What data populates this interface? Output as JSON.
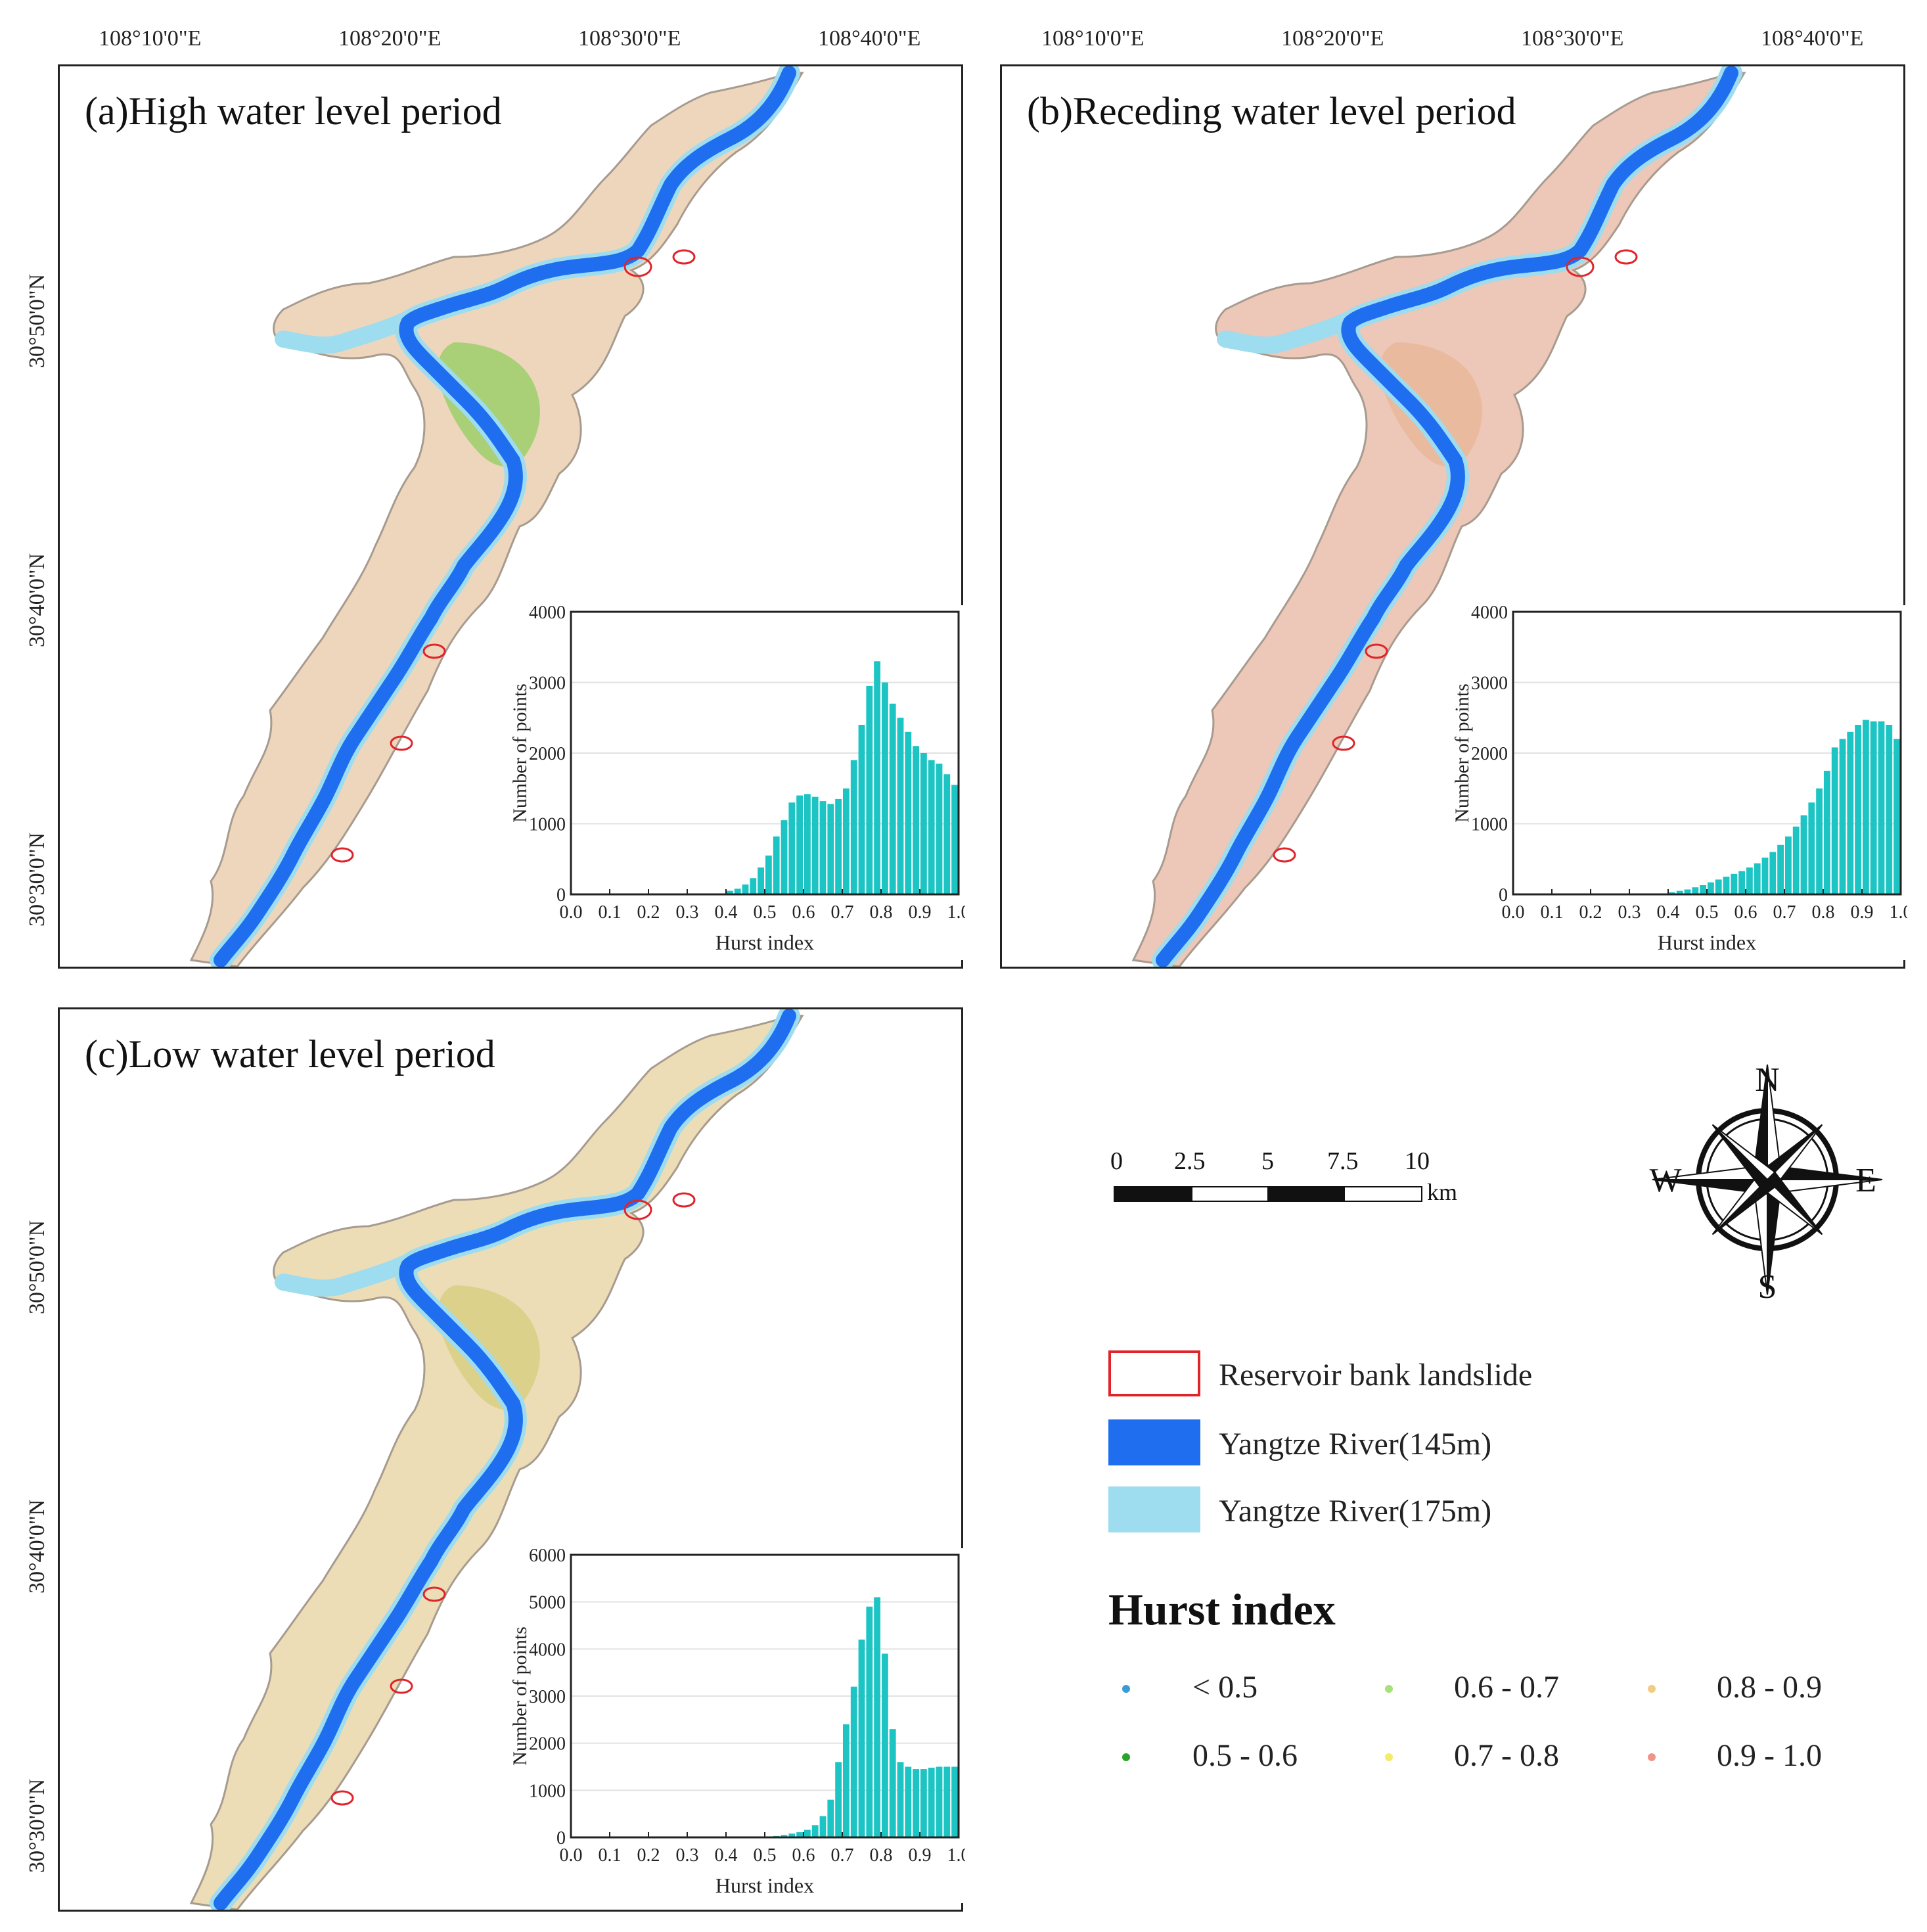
{
  "coordinates": {
    "longitude_labels": [
      "108°10'0\"E",
      "108°20'0\"E",
      "108°30'0\"E",
      "108°40'0\"E"
    ],
    "latitude_labels": [
      "30°50'0\"N",
      "30°40'0\"N",
      "30°30'0\"N"
    ]
  },
  "panels": [
    {
      "title": "(a)High water level period"
    },
    {
      "title": "(b)Receding water level period"
    },
    {
      "title": "(c)Low water level period"
    }
  ],
  "scale_bar": {
    "ticks": [
      "0",
      "2.5",
      "5",
      "7.5",
      "10"
    ],
    "unit": "km"
  },
  "compass": {
    "n": "N",
    "s": "S",
    "e": "E",
    "w": "W"
  },
  "legend": {
    "items": [
      {
        "label": "Reservoir bank landslide",
        "icon": "red-outline-rectangle",
        "color": "#e0242a"
      },
      {
        "label": "Yangtze River(145m)",
        "icon": "blue-filled-rectangle",
        "color": "#1f6ef0"
      },
      {
        "label": "Yangtze River(175m)",
        "icon": "light-blue-filled-rectangle",
        "color": "#9edcf0"
      }
    ]
  },
  "hurst_legend": {
    "title": "Hurst index",
    "classes": [
      {
        "label": "< 0.5",
        "color": "#3a9bd6"
      },
      {
        "label": "0.5 - 0.6",
        "color": "#2aa52a"
      },
      {
        "label": "0.6 - 0.7",
        "color": "#a8e07a"
      },
      {
        "label": "0.7 - 0.8",
        "color": "#f2ec6a"
      },
      {
        "label": "0.8 - 0.9",
        "color": "#f0cd82"
      },
      {
        "label": "0.9 - 1.0",
        "color": "#f0948a"
      }
    ]
  },
  "colors": {
    "river_145": "#1f6ef0",
    "river_175": "#9edcf0",
    "bar": "#1cc4c4",
    "landslide": "#e0242a"
  },
  "chart_data": [
    {
      "type": "bar",
      "panel": "(a)",
      "xlabel": "Hurst index",
      "ylabel": "Number of points",
      "xlim": [
        0.0,
        1.0
      ],
      "ylim": [
        0,
        4000
      ],
      "xticks": [
        "0.0",
        "0.1",
        "0.2",
        "0.3",
        "0.4",
        "0.5",
        "0.6",
        "0.7",
        "0.8",
        "0.9",
        "1.0"
      ],
      "yticks": [
        "0",
        "1000",
        "2000",
        "3000",
        "4000"
      ],
      "bin_width": 0.02,
      "bins": [
        0.0,
        0.02,
        0.04,
        0.06,
        0.08,
        0.1,
        0.12,
        0.14,
        0.16,
        0.18,
        0.2,
        0.22,
        0.24,
        0.26,
        0.28,
        0.3,
        0.32,
        0.34,
        0.36,
        0.38,
        0.4,
        0.42,
        0.44,
        0.46,
        0.48,
        0.5,
        0.52,
        0.54,
        0.56,
        0.58,
        0.6,
        0.62,
        0.64,
        0.66,
        0.68,
        0.7,
        0.72,
        0.74,
        0.76,
        0.78,
        0.8,
        0.82,
        0.84,
        0.86,
        0.88,
        0.9,
        0.92,
        0.94,
        0.96,
        0.98
      ],
      "values": [
        0,
        0,
        0,
        0,
        0,
        0,
        0,
        0,
        0,
        0,
        0,
        0,
        0,
        0,
        0,
        0,
        0,
        0,
        0,
        0,
        50,
        80,
        140,
        230,
        380,
        550,
        820,
        1050,
        1300,
        1400,
        1420,
        1380,
        1320,
        1280,
        1350,
        1500,
        1900,
        2400,
        2950,
        3300,
        3000,
        2700,
        2500,
        2300,
        2100,
        2000,
        1900,
        1850,
        1700,
        1550
      ]
    },
    {
      "type": "bar",
      "panel": "(b)",
      "xlabel": "Hurst index",
      "ylabel": "Number of points",
      "xlim": [
        0.0,
        1.0
      ],
      "ylim": [
        0,
        4000
      ],
      "xticks": [
        "0.0",
        "0.1",
        "0.2",
        "0.3",
        "0.4",
        "0.5",
        "0.6",
        "0.7",
        "0.8",
        "0.9",
        "1.0"
      ],
      "yticks": [
        "0",
        "1000",
        "2000",
        "3000",
        "4000"
      ],
      "bin_width": 0.02,
      "bins": [
        0.0,
        0.02,
        0.04,
        0.06,
        0.08,
        0.1,
        0.12,
        0.14,
        0.16,
        0.18,
        0.2,
        0.22,
        0.24,
        0.26,
        0.28,
        0.3,
        0.32,
        0.34,
        0.36,
        0.38,
        0.4,
        0.42,
        0.44,
        0.46,
        0.48,
        0.5,
        0.52,
        0.54,
        0.56,
        0.58,
        0.6,
        0.62,
        0.64,
        0.66,
        0.68,
        0.7,
        0.72,
        0.74,
        0.76,
        0.78,
        0.8,
        0.82,
        0.84,
        0.86,
        0.88,
        0.9,
        0.92,
        0.94,
        0.96,
        0.98
      ],
      "values": [
        0,
        0,
        0,
        0,
        0,
        0,
        0,
        0,
        0,
        0,
        0,
        0,
        0,
        0,
        0,
        0,
        0,
        0,
        0,
        0,
        30,
        50,
        70,
        100,
        130,
        170,
        210,
        250,
        290,
        330,
        380,
        440,
        520,
        600,
        700,
        820,
        960,
        1120,
        1300,
        1500,
        1750,
        2080,
        2200,
        2300,
        2400,
        2470,
        2450,
        2450,
        2400,
        2200
      ]
    },
    {
      "type": "bar",
      "panel": "(c)",
      "xlabel": "Hurst index",
      "ylabel": "Number of points",
      "xlim": [
        0.0,
        1.0
      ],
      "ylim": [
        0,
        6000
      ],
      "xticks": [
        "0.0",
        "0.1",
        "0.2",
        "0.3",
        "0.4",
        "0.5",
        "0.6",
        "0.7",
        "0.8",
        "0.9",
        "1.0"
      ],
      "yticks": [
        "0",
        "1000",
        "2000",
        "3000",
        "4000",
        "5000",
        "6000"
      ],
      "bin_width": 0.02,
      "bins": [
        0.0,
        0.02,
        0.04,
        0.06,
        0.08,
        0.1,
        0.12,
        0.14,
        0.16,
        0.18,
        0.2,
        0.22,
        0.24,
        0.26,
        0.28,
        0.3,
        0.32,
        0.34,
        0.36,
        0.38,
        0.4,
        0.42,
        0.44,
        0.46,
        0.48,
        0.5,
        0.52,
        0.54,
        0.56,
        0.58,
        0.6,
        0.62,
        0.64,
        0.66,
        0.68,
        0.7,
        0.72,
        0.74,
        0.76,
        0.78,
        0.8,
        0.82,
        0.84,
        0.86,
        0.88,
        0.9,
        0.92,
        0.94,
        0.96,
        0.98
      ],
      "values": [
        0,
        0,
        0,
        0,
        0,
        0,
        0,
        0,
        0,
        0,
        0,
        0,
        0,
        0,
        0,
        0,
        0,
        0,
        0,
        0,
        0,
        0,
        0,
        0,
        0,
        20,
        30,
        50,
        80,
        110,
        160,
        260,
        450,
        800,
        1600,
        2400,
        3200,
        4200,
        4900,
        5100,
        3900,
        2300,
        1600,
        1500,
        1450,
        1450,
        1480,
        1500,
        1500,
        1500
      ]
    }
  ]
}
